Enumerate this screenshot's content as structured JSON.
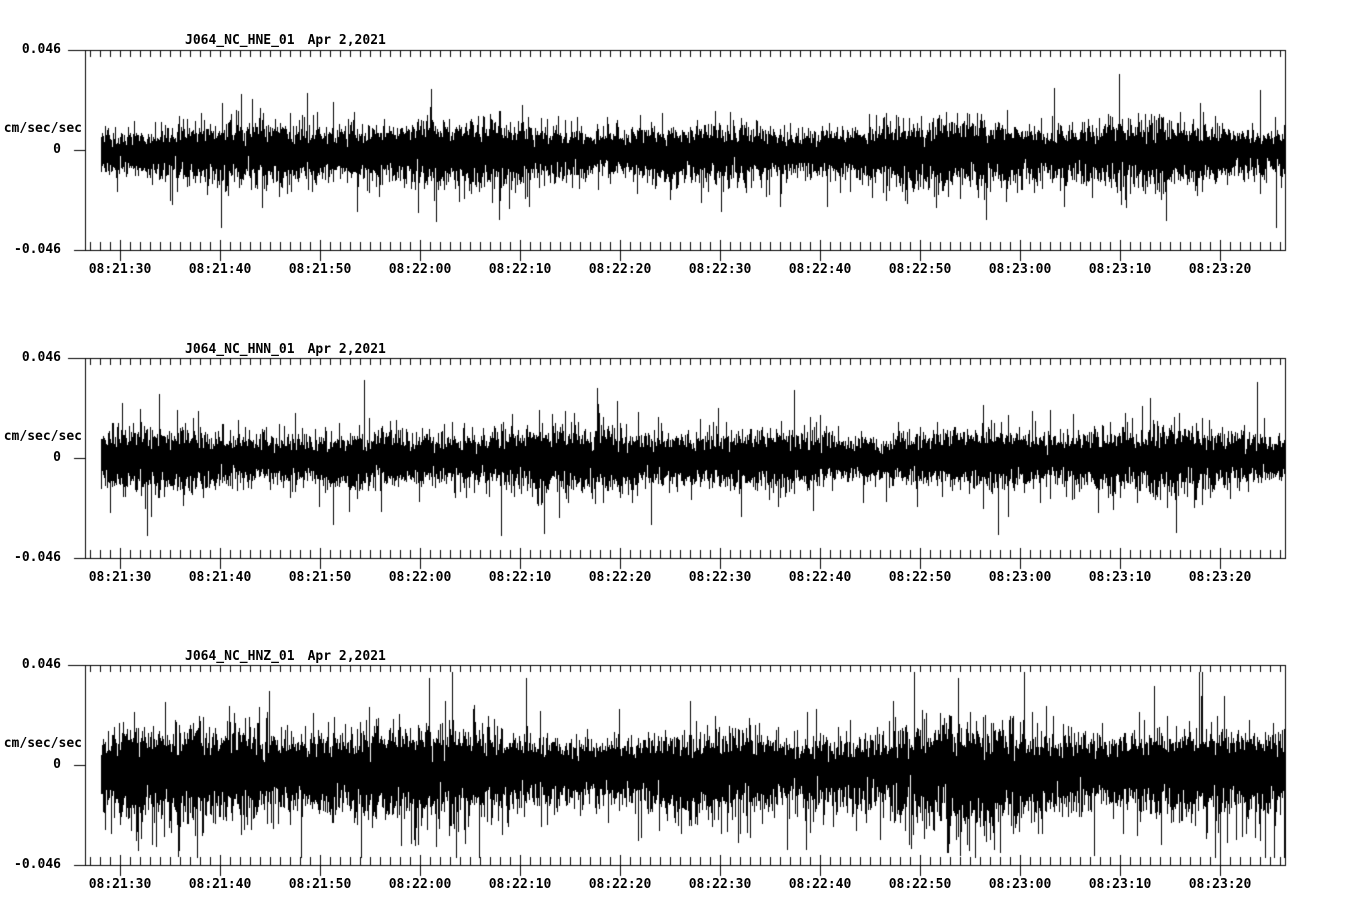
{
  "page": {
    "background": "#ffffff",
    "ink": "#000000",
    "description": "Three-panel continuous seismogram (strong-motion acceleration) waveform display"
  },
  "chart_data": [
    {
      "type": "line",
      "variant": "seismogram_minmax_noise_trace",
      "station_label": "J064_NC_HNE_01",
      "date_label": "Apr 2,2021",
      "ylabel": "cm/sec/sec",
      "ytick_labels": [
        "0.046",
        "0",
        "-0.046"
      ],
      "ylim": [
        -0.046,
        0.046
      ],
      "xtick_labels": [
        "08:21:30",
        "08:21:40",
        "08:21:50",
        "08:22:00",
        "08:22:10",
        "08:22:20",
        "08:22:30",
        "08:22:40",
        "08:22:50",
        "08:23:00",
        "08:23:10",
        "08:23:20"
      ],
      "x_start": "08:21:27",
      "x_end": "08:23:27",
      "x_major_tick_seconds": 10,
      "x_minor_tick_seconds": 1,
      "grid": false,
      "trace_color": "#000000",
      "noise_model": {
        "seed": 1101,
        "sigma_up": 0.005,
        "sigma_down": 0.0058,
        "mean": -0.001,
        "samples_per_column": 16,
        "p_med": 0.16,
        "med_gain": [
          1.15,
          0.55
        ],
        "p_big": 0.013,
        "big_gain": [
          1.75,
          1.1
        ],
        "clamp": 0.036,
        "mod": [
          {
            "amp": 0.16,
            "len": 230,
            "phase": 1.2
          },
          {
            "amp": 0.1,
            "len": 640,
            "phase": 4.0
          }
        ]
      }
    },
    {
      "type": "line",
      "variant": "seismogram_minmax_noise_trace",
      "station_label": "J064_NC_HNN_01",
      "date_label": "Apr 2,2021",
      "ylabel": "cm/sec/sec",
      "ytick_labels": [
        "0.046",
        "0",
        "-0.046"
      ],
      "ylim": [
        -0.046,
        0.046
      ],
      "xtick_labels": [
        "08:21:30",
        "08:21:40",
        "08:21:50",
        "08:22:00",
        "08:22:10",
        "08:22:20",
        "08:22:30",
        "08:22:40",
        "08:22:50",
        "08:23:00",
        "08:23:10",
        "08:23:20"
      ],
      "x_start": "08:21:27",
      "x_end": "08:23:27",
      "x_major_tick_seconds": 10,
      "x_minor_tick_seconds": 1,
      "grid": false,
      "trace_color": "#000000",
      "noise_model": {
        "seed": 1102,
        "sigma_up": 0.0052,
        "sigma_down": 0.0055,
        "mean": -0.0004,
        "samples_per_column": 16,
        "p_med": 0.16,
        "med_gain": [
          1.15,
          0.55
        ],
        "p_big": 0.013,
        "big_gain": [
          1.75,
          1.1
        ],
        "clamp": 0.036,
        "mod": [
          {
            "amp": 0.13,
            "len": 200,
            "phase": 2.6
          },
          {
            "amp": 0.09,
            "len": 520,
            "phase": 0.7
          }
        ]
      }
    },
    {
      "type": "line",
      "variant": "seismogram_minmax_noise_trace",
      "station_label": "J064_NC_HNZ_01",
      "date_label": "Apr 2,2021",
      "ylabel": "cm/sec/sec",
      "ytick_labels": [
        "0.046",
        "0",
        "-0.046"
      ],
      "ylim": [
        -0.046,
        0.046
      ],
      "xtick_labels": [
        "08:21:30",
        "08:21:40",
        "08:21:50",
        "08:22:00",
        "08:22:10",
        "08:22:20",
        "08:22:30",
        "08:22:40",
        "08:22:50",
        "08:23:00",
        "08:23:10",
        "08:23:20"
      ],
      "x_start": "08:21:27",
      "x_end": "08:23:27",
      "x_major_tick_seconds": 10,
      "x_minor_tick_seconds": 1,
      "grid": false,
      "trace_color": "#000000",
      "noise_model": {
        "seed": 1103,
        "sigma_up": 0.0066,
        "sigma_down": 0.009,
        "mean": -0.0013,
        "samples_per_column": 16,
        "p_med": 0.18,
        "med_gain": [
          1.18,
          0.55
        ],
        "p_big": 0.014,
        "big_gain": [
          1.75,
          1.2
        ],
        "clamp": 0.043,
        "mod": [
          {
            "amp": 0.15,
            "len": 260,
            "phase": 3.4
          },
          {
            "amp": 0.11,
            "len": 700,
            "phase": 5.2
          }
        ]
      }
    }
  ]
}
